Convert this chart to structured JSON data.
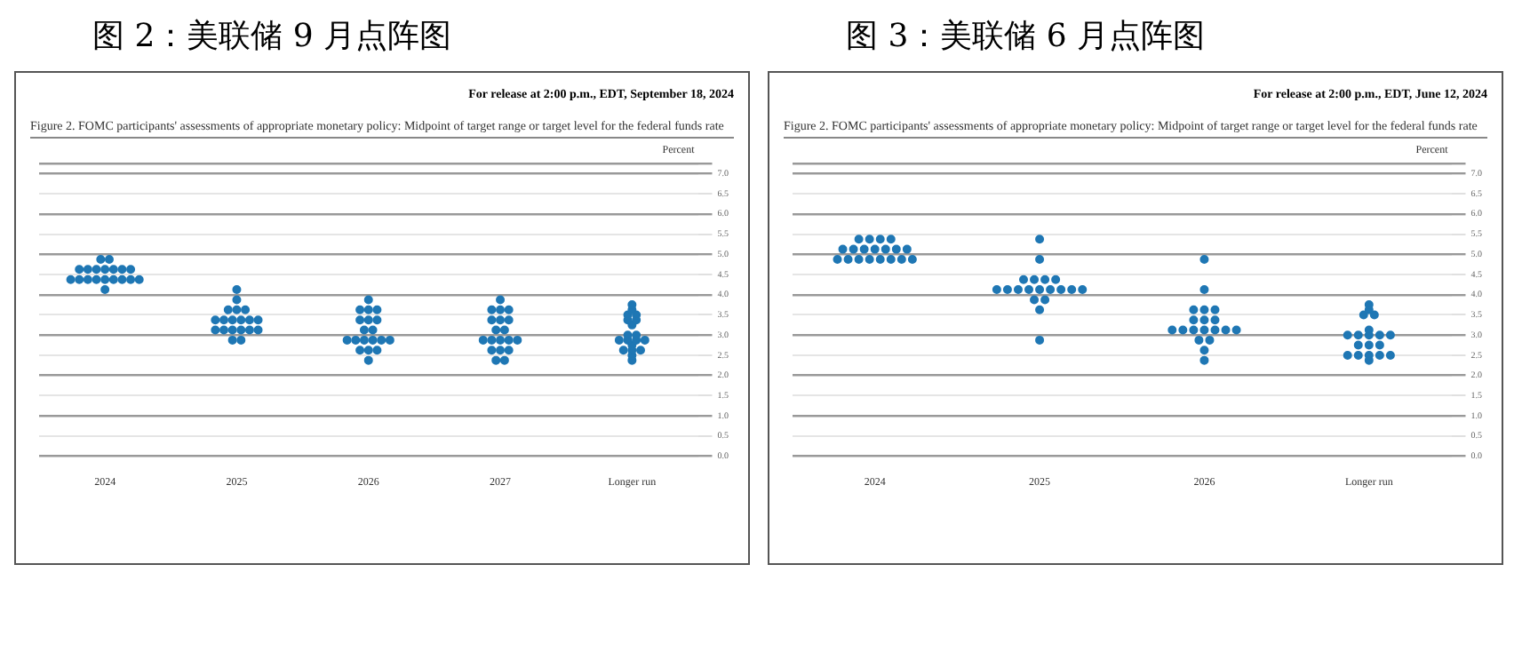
{
  "chart_data": [
    {
      "type": "scatter",
      "title": "图 2：美联储 9 月点阵图",
      "subtitle": "For release at 2:00 p.m., EDT, September 18, 2024",
      "annotations": [
        "Figure 2.  FOMC participants' assessments of appropriate monetary policy:  Midpoint of target range or target level for the federal funds rate"
      ],
      "ylabel": "Percent",
      "categories": [
        "2024",
        "2025",
        "2026",
        "2027",
        "Longer run"
      ],
      "ylim": [
        0,
        7.25
      ],
      "yticks": [
        {
          "value": 0,
          "label": "0.0"
        },
        {
          "value": 0.5,
          "label": "0.5"
        },
        {
          "value": 1,
          "label": "1.0"
        },
        {
          "value": 1.5,
          "label": "1.5"
        },
        {
          "value": 2,
          "label": "2.0"
        },
        {
          "value": 2.5,
          "label": "2.5"
        },
        {
          "value": 3,
          "label": "3.0"
        },
        {
          "value": 3.5,
          "label": "3.5"
        },
        {
          "value": 4,
          "label": "4.0"
        },
        {
          "value": 4.5,
          "label": "4.5"
        },
        {
          "value": 5,
          "label": "5.0"
        },
        {
          "value": 5.5,
          "label": "5.5"
        },
        {
          "value": 6,
          "label": "6.0"
        },
        {
          "value": 6.5,
          "label": "6.5"
        },
        {
          "value": 7,
          "label": "7.0"
        },
        {
          "value": 7.25,
          "label": null
        }
      ],
      "grid": true,
      "legend": false,
      "marker": "circle",
      "series": [
        {
          "color": "#1f77b4",
          "values": [
            4.875,
            4.125,
            3.875,
            3.875,
            3.75
          ]
        },
        {
          "color": "#1f77b4",
          "values": [
            4.875,
            3.875,
            3.625,
            3.625,
            3.625
          ]
        },
        {
          "color": "#1f77b4",
          "values": [
            4.625,
            3.625,
            3.625,
            3.625,
            3.5
          ]
        },
        {
          "color": "#1f77b4",
          "values": [
            4.625,
            3.625,
            3.625,
            3.625,
            3.5
          ]
        },
        {
          "color": "#1f77b4",
          "values": [
            4.625,
            3.625,
            3.375,
            3.375,
            3.375
          ]
        },
        {
          "color": "#1f77b4",
          "values": [
            4.625,
            3.375,
            3.375,
            3.375,
            3.375
          ]
        },
        {
          "color": "#1f77b4",
          "values": [
            4.625,
            3.375,
            3.375,
            3.375,
            3.25
          ]
        },
        {
          "color": "#1f77b4",
          "values": [
            4.625,
            3.375,
            3.125,
            3.125,
            3.0
          ]
        },
        {
          "color": "#1f77b4",
          "values": [
            4.625,
            3.375,
            3.125,
            3.125,
            3.0
          ]
        },
        {
          "color": "#1f77b4",
          "values": [
            4.375,
            3.375,
            2.875,
            2.875,
            2.875
          ]
        },
        {
          "color": "#1f77b4",
          "values": [
            4.375,
            3.375,
            2.875,
            2.875,
            2.875
          ]
        },
        {
          "color": "#1f77b4",
          "values": [
            4.375,
            3.125,
            2.875,
            2.875,
            2.875
          ]
        },
        {
          "color": "#1f77b4",
          "values": [
            4.375,
            3.125,
            2.875,
            2.875,
            2.875
          ]
        },
        {
          "color": "#1f77b4",
          "values": [
            4.375,
            3.125,
            2.875,
            2.875,
            2.75
          ]
        },
        {
          "color": "#1f77b4",
          "values": [
            4.375,
            3.125,
            2.875,
            2.625,
            2.625
          ]
        },
        {
          "color": "#1f77b4",
          "values": [
            4.375,
            3.125,
            2.625,
            2.625,
            2.625
          ]
        },
        {
          "color": "#1f77b4",
          "values": [
            4.375,
            3.125,
            2.625,
            2.625,
            2.625
          ]
        },
        {
          "color": "#1f77b4",
          "values": [
            4.375,
            2.875,
            2.625,
            2.375,
            2.5
          ]
        },
        {
          "color": "#1f77b4",
          "values": [
            4.125,
            2.875,
            2.375,
            2.375,
            2.375
          ]
        }
      ]
    },
    {
      "type": "scatter",
      "title": "图 3：美联储 6 月点阵图",
      "subtitle": "For release at 2:00 p.m., EDT, June 12, 2024",
      "annotations": [
        "Figure 2.  FOMC participants' assessments of appropriate monetary policy:  Midpoint of target range or target level for the federal funds rate"
      ],
      "ylabel": "Percent",
      "categories": [
        "2024",
        "2025",
        "2026",
        "Longer run"
      ],
      "ylim": [
        0,
        7.25
      ],
      "yticks": [
        {
          "value": 0,
          "label": "0.0"
        },
        {
          "value": 0.5,
          "label": "0.5"
        },
        {
          "value": 1,
          "label": "1.0"
        },
        {
          "value": 1.5,
          "label": "1.5"
        },
        {
          "value": 2,
          "label": "2.0"
        },
        {
          "value": 2.5,
          "label": "2.5"
        },
        {
          "value": 3,
          "label": "3.0"
        },
        {
          "value": 3.5,
          "label": "3.5"
        },
        {
          "value": 4,
          "label": "4.0"
        },
        {
          "value": 4.5,
          "label": "4.5"
        },
        {
          "value": 5,
          "label": "5.0"
        },
        {
          "value": 5.5,
          "label": "5.5"
        },
        {
          "value": 6,
          "label": "6.0"
        },
        {
          "value": 6.5,
          "label": "6.5"
        },
        {
          "value": 7,
          "label": "7.0"
        },
        {
          "value": 7.25,
          "label": null
        }
      ],
      "grid": true,
      "legend": false,
      "marker": "circle",
      "series": [
        {
          "color": "#1f77b4",
          "values": [
            5.375,
            5.375,
            4.875,
            3.75
          ]
        },
        {
          "color": "#1f77b4",
          "values": [
            5.375,
            4.875,
            4.125,
            3.625
          ]
        },
        {
          "color": "#1f77b4",
          "values": [
            5.375,
            4.375,
            3.625,
            3.5
          ]
        },
        {
          "color": "#1f77b4",
          "values": [
            5.375,
            4.375,
            3.625,
            3.5
          ]
        },
        {
          "color": "#1f77b4",
          "values": [
            5.125,
            4.375,
            3.625,
            3.125
          ]
        },
        {
          "color": "#1f77b4",
          "values": [
            5.125,
            4.375,
            3.375,
            3.0
          ]
        },
        {
          "color": "#1f77b4",
          "values": [
            5.125,
            4.125,
            3.375,
            3.0
          ]
        },
        {
          "color": "#1f77b4",
          "values": [
            5.125,
            4.125,
            3.375,
            3.0
          ]
        },
        {
          "color": "#1f77b4",
          "values": [
            5.125,
            4.125,
            3.125,
            3.0
          ]
        },
        {
          "color": "#1f77b4",
          "values": [
            5.125,
            4.125,
            3.125,
            3.0
          ]
        },
        {
          "color": "#1f77b4",
          "values": [
            5.125,
            4.125,
            3.125,
            2.75
          ]
        },
        {
          "color": "#1f77b4",
          "values": [
            4.875,
            4.125,
            3.125,
            2.75
          ]
        },
        {
          "color": "#1f77b4",
          "values": [
            4.875,
            4.125,
            3.125,
            2.75
          ]
        },
        {
          "color": "#1f77b4",
          "values": [
            4.875,
            4.125,
            3.125,
            2.5
          ]
        },
        {
          "color": "#1f77b4",
          "values": [
            4.875,
            4.125,
            3.125,
            2.5
          ]
        },
        {
          "color": "#1f77b4",
          "values": [
            4.875,
            3.875,
            2.875,
            2.5
          ]
        },
        {
          "color": "#1f77b4",
          "values": [
            4.875,
            3.875,
            2.875,
            2.5
          ]
        },
        {
          "color": "#1f77b4",
          "values": [
            4.875,
            3.625,
            2.625,
            2.5
          ]
        },
        {
          "color": "#1f77b4",
          "values": [
            4.875,
            2.875,
            2.375,
            2.375
          ]
        }
      ]
    }
  ]
}
